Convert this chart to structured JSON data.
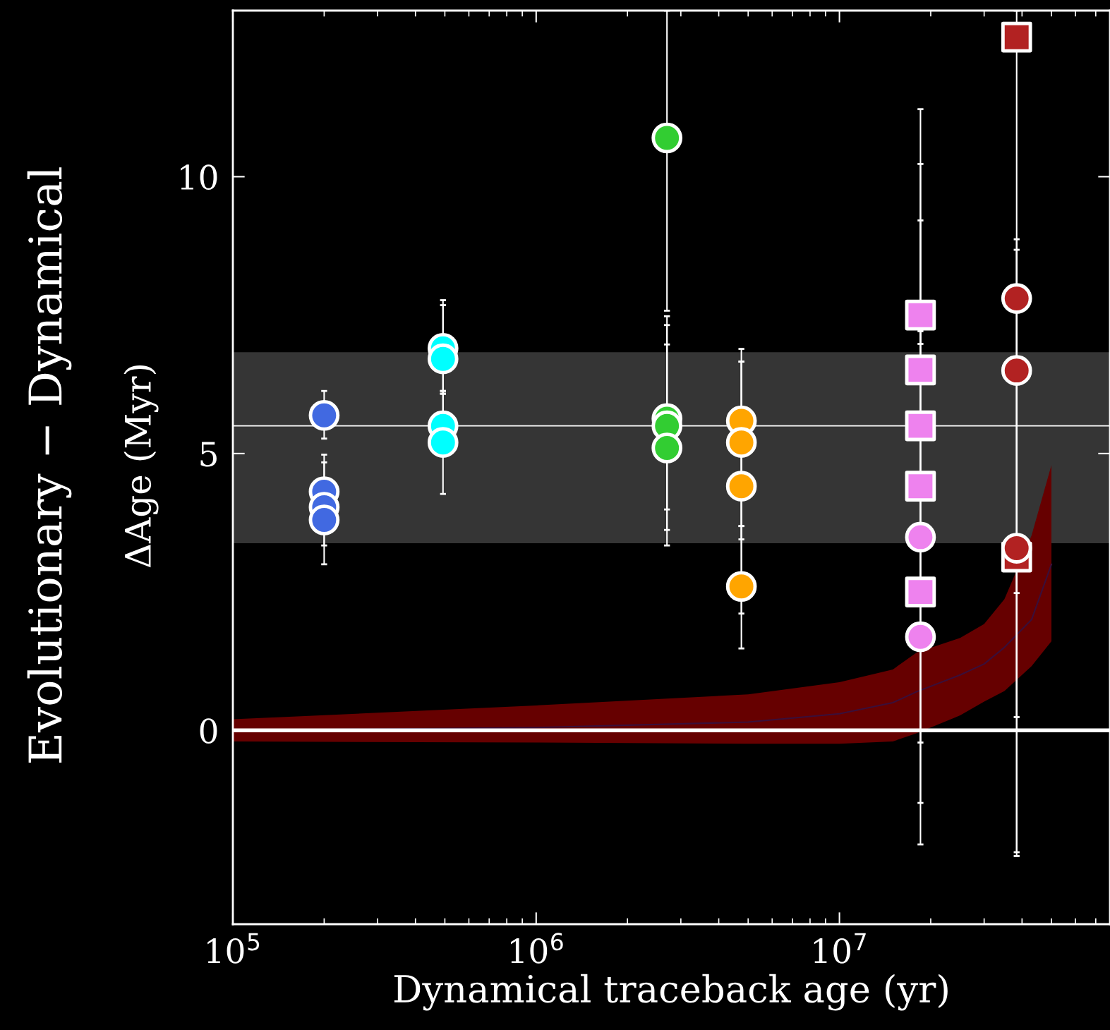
{
  "chart_data": {
    "type": "scatter",
    "xlabel": "Dynamical traceback age (yr)",
    "ylabel": "Evolutionary − Dynamical\nΔAge (Myr)",
    "log": "x",
    "xlim": [
      100000,
      78000000
    ],
    "ylim": [
      -3.5,
      13.0
    ],
    "xticks": [
      {
        "value": 100000,
        "label": "10$^{5}$"
      },
      {
        "value": 1000000,
        "label": "10$^{6}$"
      },
      {
        "value": 10000000,
        "label": "10$^{7}$"
      }
    ],
    "yticks": [
      0,
      5,
      10
    ],
    "grid": false,
    "legend": false,
    "ref_lines": [
      {
        "axis": "y",
        "value": 0,
        "color": "#ffffff",
        "line_style": "solid"
      },
      {
        "axis": "y",
        "value": 5.5,
        "color": "#ffffff",
        "line_style": "solid"
      }
    ],
    "bands": [
      {
        "axis": "y",
        "from": 3.38,
        "to": 6.83,
        "color": "#353535"
      }
    ],
    "series": [
      {
        "type": "line",
        "color": "#3a0f3a",
        "x": [
          100000,
          1000000,
          5000000,
          10000000,
          15000000,
          18000000,
          25000000,
          30000000,
          35000000,
          43000000,
          50000000
        ],
        "values": [
          0.0,
          0.05,
          0.15,
          0.3,
          0.5,
          0.7,
          1.0,
          1.2,
          1.5,
          2.0,
          3.0
        ],
        "lower": [
          -0.2,
          -0.22,
          -0.24,
          -0.24,
          -0.2,
          -0.05,
          0.27,
          0.52,
          0.71,
          1.16,
          1.61
        ],
        "upper": [
          0.2,
          0.45,
          0.65,
          0.87,
          1.1,
          1.41,
          1.67,
          1.92,
          2.37,
          3.52,
          4.79
        ]
      },
      {
        "color": "#4169e1",
        "marker": "circle",
        "x": [
          200000,
          200000,
          200000,
          200000
        ],
        "values": [
          5.69,
          4.31,
          4.03,
          3.8
        ],
        "errors": [
          [
            5.27,
            6.13
          ],
          [
            3.34,
            4.98
          ],
          [
            3.0,
            4.84
          ],
          null
        ]
      },
      {
        "color": "#00ffff",
        "marker": "circle",
        "x": [
          493000,
          493000,
          493000,
          493000
        ],
        "values": [
          6.9,
          6.71,
          5.5,
          5.2
        ],
        "errors": [
          [
            6.08,
            7.77
          ],
          [
            6.13,
            7.68
          ],
          [
            5.5,
            6.08
          ],
          [
            4.27,
            6.13
          ]
        ]
      },
      {
        "color": "#32cd32",
        "marker": "circle",
        "x": [
          2700000,
          2700000,
          2700000,
          2700000
        ],
        "values": [
          10.7,
          5.63,
          5.5,
          5.1
        ],
        "errors": [
          [
            7.58,
            13.0
          ],
          [
            3.34,
            7.48
          ],
          [
            3.62,
            7.32
          ],
          [
            3.99,
            6.97
          ]
        ]
      },
      {
        "color": "#ffa500",
        "marker": "circle",
        "x": [
          4750000,
          4750000,
          4750000,
          4750000
        ],
        "values": [
          5.59,
          5.2,
          4.41,
          2.6
        ],
        "errors": [
          [
            3.45,
            6.89
          ],
          [
            3.69,
            6.66
          ],
          [
            2.11,
            6.66
          ],
          [
            1.48,
            3.69
          ]
        ]
      },
      {
        "color": "#ee82ee",
        "marker": "square",
        "x": [
          18500000,
          18500000,
          18500000,
          18500000,
          18500000
        ],
        "values": [
          7.5,
          6.51,
          5.5,
          4.41,
          2.5
        ],
        "errors": [
          [
            6.98,
            11.22
          ],
          [
            -2.06,
            10.23
          ],
          [
            -1.31,
            9.21
          ],
          [
            -0.22,
            7.21
          ],
          null
        ]
      },
      {
        "color": "#ee82ee",
        "marker": "circle",
        "x": [
          18500000,
          18500000
        ],
        "values": [
          3.49,
          1.69
        ],
        "errors": [
          null,
          null
        ]
      },
      {
        "color": "#b22222",
        "marker": "square",
        "x": [
          38400000,
          38400000
        ],
        "values": [
          12.52,
          3.13
        ],
        "errors": [
          [
            -2.27,
            13.0
          ],
          null
        ]
      },
      {
        "color": "#b22222",
        "marker": "circle",
        "x": [
          38400000,
          38400000,
          38400000
        ],
        "values": [
          7.8,
          6.5,
          3.29
        ],
        "errors": [
          [
            -2.2,
            8.87
          ],
          [
            0.24,
            8.68
          ],
          [
            2.48,
            3.29
          ]
        ]
      }
    ]
  }
}
